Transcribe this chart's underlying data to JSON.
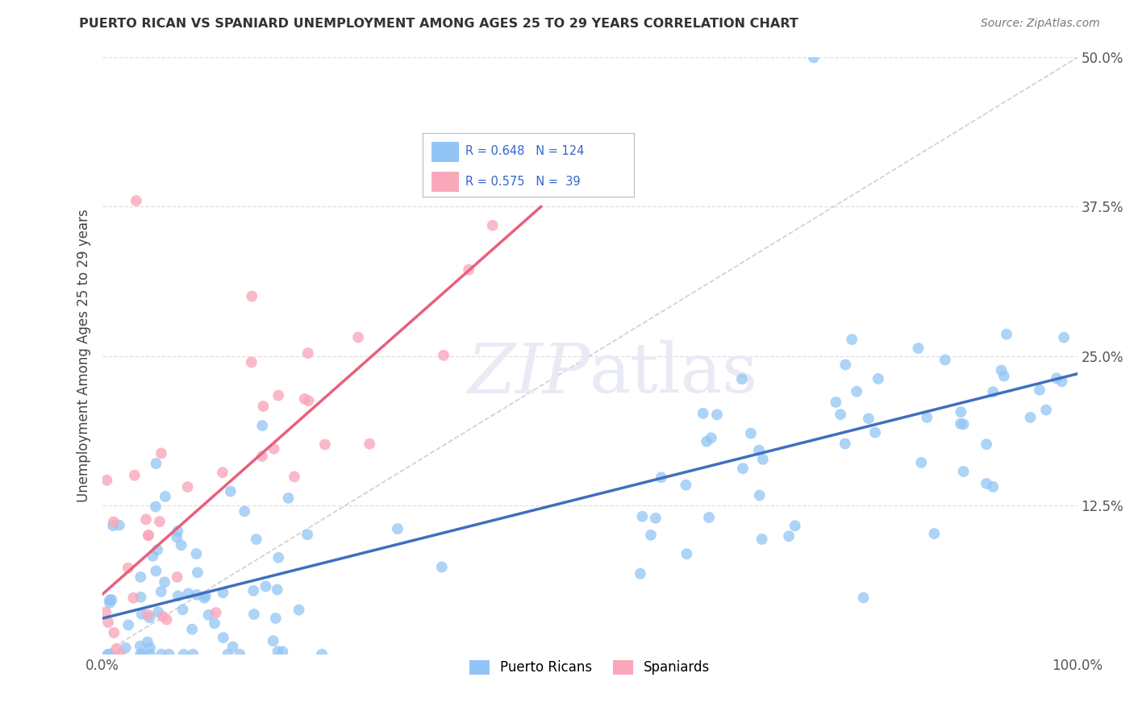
{
  "title": "PUERTO RICAN VS SPANIARD UNEMPLOYMENT AMONG AGES 25 TO 29 YEARS CORRELATION CHART",
  "source": "Source: ZipAtlas.com",
  "ylabel": "Unemployment Among Ages 25 to 29 years",
  "xlim": [
    0,
    1.0
  ],
  "ylim": [
    0,
    0.5
  ],
  "x_ticks": [
    0.0,
    1.0
  ],
  "x_ticklabels": [
    "0.0%",
    "100.0%"
  ],
  "y_ticks": [
    0.0,
    0.125,
    0.25,
    0.375,
    0.5
  ],
  "y_ticklabels": [
    "",
    "12.5%",
    "25.0%",
    "37.5%",
    "50.0%"
  ],
  "legend_labels": [
    "Puerto Ricans",
    "Spaniards"
  ],
  "pr_R": "0.648",
  "pr_N": "124",
  "sp_R": "0.575",
  "sp_N": " 39",
  "pr_color": "#92C5F5",
  "sp_color": "#F9A8BB",
  "pr_line_color": "#3F6FBF",
  "sp_line_color": "#E8607A",
  "diagonal_color": "#BBBBBB",
  "background_color": "#FFFFFF",
  "grid_color": "#DDDDDD",
  "title_color": "#333333",
  "source_color": "#777777",
  "legend_text_color": "#3366CC",
  "watermark_color": "#E8EAF5",
  "pr_line_x": [
    0.0,
    1.0
  ],
  "pr_line_y": [
    0.03,
    0.235
  ],
  "sp_line_x": [
    0.0,
    0.45
  ],
  "sp_line_y": [
    0.05,
    0.375
  ]
}
